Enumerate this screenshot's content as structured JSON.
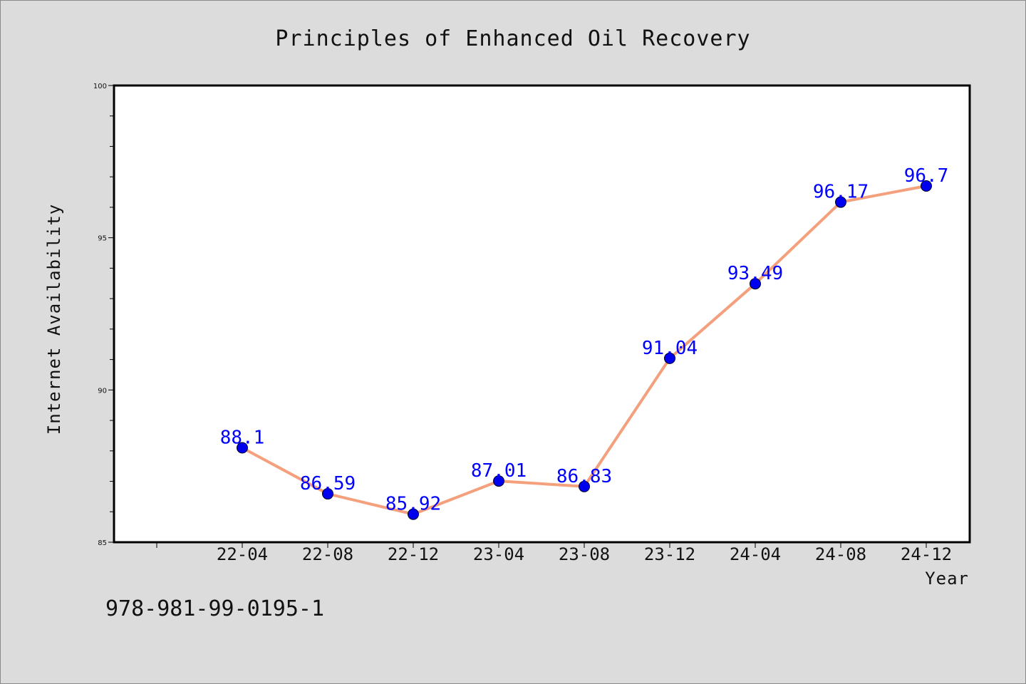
{
  "chart_data": {
    "type": "line",
    "title": "Principles of Enhanced Oil Recovery",
    "xlabel": "Year",
    "ylabel": "Internet Availability",
    "categories": [
      "22-04",
      "22-08",
      "22-12",
      "23-04",
      "23-08",
      "23-12",
      "24-04",
      "24-08",
      "24-12"
    ],
    "values": [
      88.1,
      86.59,
      85.92,
      87.01,
      86.83,
      91.04,
      93.49,
      96.17,
      96.7
    ],
    "data_labels": [
      "88.1",
      "86.59",
      "85.92",
      "87.01",
      "86.83",
      "91.04",
      "93.49",
      "96.17",
      "96.7"
    ],
    "ylim": [
      85,
      100
    ],
    "yticks": [
      85,
      90,
      95,
      100
    ],
    "grid": false,
    "line_color": "#f4a07c",
    "marker_color": "#0000ee",
    "label_color": "#0000ff"
  },
  "footer": {
    "isbn": "978-981-99-0195-1"
  }
}
